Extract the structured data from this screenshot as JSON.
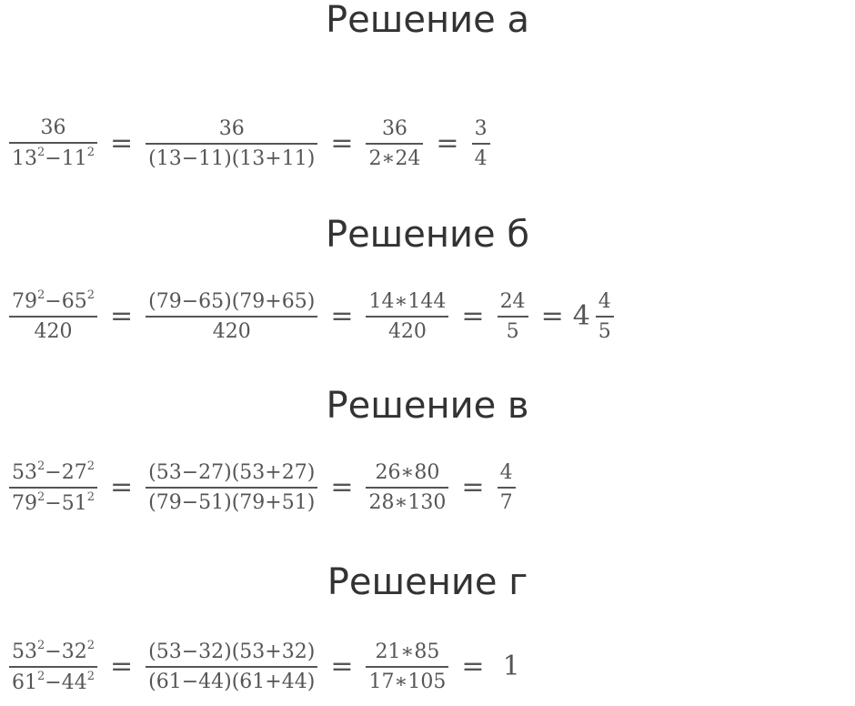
{
  "sections": [
    {
      "heading": "Решение а",
      "terms": [
        {
          "num": "36",
          "den": "13^2−11^2"
        },
        {
          "op": "="
        },
        {
          "num": "36",
          "den": "(13−11)(13+11)"
        },
        {
          "op": "="
        },
        {
          "num": "36",
          "den": "2∗24"
        },
        {
          "op": "="
        },
        {
          "num": "3",
          "den": "4"
        }
      ]
    },
    {
      "heading": "Решение б",
      "terms": [
        {
          "num": "79^2−65^2",
          "den": "420"
        },
        {
          "op": "="
        },
        {
          "num": "(79−65)(79+65)",
          "den": "420"
        },
        {
          "op": "="
        },
        {
          "num": "14∗144",
          "den": "420"
        },
        {
          "op": "="
        },
        {
          "num": "24",
          "den": "5"
        },
        {
          "op": "="
        },
        {
          "whole": "4",
          "num": "4",
          "den": "5"
        }
      ]
    },
    {
      "heading": "Решение в",
      "terms": [
        {
          "num": "53^2−27^2",
          "den": "79^2−51^2"
        },
        {
          "op": "="
        },
        {
          "num": "(53−27)(53+27)",
          "den": "(79−51)(79+51)"
        },
        {
          "op": "="
        },
        {
          "num": "26∗80",
          "den": "28∗130"
        },
        {
          "op": "="
        },
        {
          "num": "4",
          "den": "7"
        }
      ]
    },
    {
      "heading": "Решение г",
      "terms": [
        {
          "num": "53^2−32^2",
          "den": "61^2−44^2"
        },
        {
          "op": "="
        },
        {
          "num": "(53−32)(53+32)",
          "den": "(61−44)(61+44)"
        },
        {
          "op": "="
        },
        {
          "num": "21∗85",
          "den": "17∗105"
        },
        {
          "op": "="
        },
        {
          "op": "1"
        }
      ]
    }
  ]
}
